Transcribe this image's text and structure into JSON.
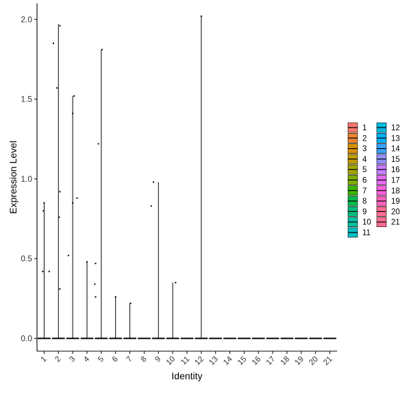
{
  "chart_data": {
    "type": "violin",
    "xlabel": "Identity",
    "ylabel": "Expression Level",
    "ylim": [
      -0.08,
      2.1
    ],
    "yticks": [
      "0.0",
      "0.5",
      "1.0",
      "1.5",
      "2.0"
    ],
    "categories": [
      "1",
      "2",
      "3",
      "4",
      "5",
      "6",
      "7",
      "8",
      "9",
      "10",
      "11",
      "12",
      "13",
      "14",
      "15",
      "16",
      "17",
      "18",
      "19",
      "20",
      "21"
    ],
    "colors": [
      "#F8766D",
      "#EA8331",
      "#D89000",
      "#C09B00",
      "#A3A500",
      "#7CAE00",
      "#39B600",
      "#00BB4E",
      "#00BF7D",
      "#00C1A3",
      "#00BFC4",
      "#00BAE0",
      "#00B0F6",
      "#35A2FF",
      "#9590FF",
      "#C77CFF",
      "#E76BF3",
      "#FA62DB",
      "#FF62BC",
      "#FF6C91",
      "#FF6C91"
    ],
    "violin_max": [
      0.85,
      1.97,
      1.52,
      0.48,
      1.81,
      0.26,
      0.22,
      0.0,
      0.98,
      0.35,
      0.0,
      2.02,
      0.0,
      0.0,
      0.0,
      0.0,
      0.0,
      0.0,
      0.0,
      0.0,
      0.0
    ],
    "points": [
      {
        "group": 1,
        "offset": -0.1,
        "y": 0.42
      },
      {
        "group": 1,
        "offset": 0.35,
        "y": 0.42
      },
      {
        "group": 1,
        "offset": -0.05,
        "y": 0.8
      },
      {
        "group": 1,
        "offset": 0.0,
        "y": 0.85
      },
      {
        "group": 2,
        "offset": -0.35,
        "y": 1.85
      },
      {
        "group": 2,
        "offset": -0.1,
        "y": 1.57
      },
      {
        "group": 2,
        "offset": 0.1,
        "y": 1.96
      },
      {
        "group": 2,
        "offset": 0.1,
        "y": 0.92
      },
      {
        "group": 2,
        "offset": 0.05,
        "y": 0.76
      },
      {
        "group": 2,
        "offset": 0.1,
        "y": 0.31
      },
      {
        "group": 3,
        "offset": -0.3,
        "y": 0.52
      },
      {
        "group": 3,
        "offset": 0.0,
        "y": 1.41
      },
      {
        "group": 3,
        "offset": 0.1,
        "y": 1.52
      },
      {
        "group": 3,
        "offset": 0.0,
        "y": 0.85
      },
      {
        "group": 3,
        "offset": 0.3,
        "y": 0.88
      },
      {
        "group": 4,
        "offset": 0.0,
        "y": 0.48
      },
      {
        "group": 5,
        "offset": -0.4,
        "y": 0.47
      },
      {
        "group": 5,
        "offset": -0.45,
        "y": 0.34
      },
      {
        "group": 5,
        "offset": -0.4,
        "y": 0.26
      },
      {
        "group": 5,
        "offset": -0.2,
        "y": 1.22
      },
      {
        "group": 5,
        "offset": 0.05,
        "y": 1.81
      },
      {
        "group": 6,
        "offset": 0.0,
        "y": 0.26
      },
      {
        "group": 7,
        "offset": 0.05,
        "y": 0.22
      },
      {
        "group": 9,
        "offset": -0.5,
        "y": 0.83
      },
      {
        "group": 9,
        "offset": -0.35,
        "y": 0.98
      },
      {
        "group": 10,
        "offset": 0.2,
        "y": 0.35
      },
      {
        "group": 12,
        "offset": 0.0,
        "y": 2.02
      }
    ],
    "legend_position": "right"
  }
}
